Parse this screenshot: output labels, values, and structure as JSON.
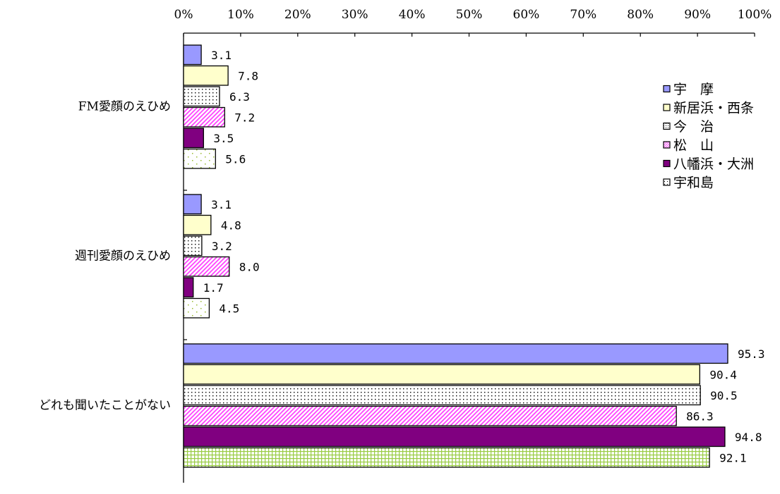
{
  "chart_data": {
    "type": "bar",
    "orientation": "horizontal",
    "categories": [
      "FM愛顔のえひめ",
      "週刊愛顔のえひめ",
      "どれも聞いたことがない"
    ],
    "x_ticks": [
      "0%",
      "10%",
      "20%",
      "30%",
      "40%",
      "50%",
      "60%",
      "70%",
      "80%",
      "90%",
      "100%"
    ],
    "xlim": [
      0,
      100
    ],
    "axis_position": "top",
    "grid": false,
    "legend_position": "right",
    "series": [
      {
        "name": "宇　摩",
        "values": [
          3.1,
          3.1,
          95.3
        ],
        "labels": [
          "3.1",
          "3.1",
          "95.3"
        ],
        "color": "#9999ff",
        "pattern": "solid"
      },
      {
        "name": "新居浜・西条",
        "values": [
          7.8,
          4.8,
          90.4
        ],
        "labels": [
          "7.8",
          "4.8",
          "90.4"
        ],
        "color": "#ffffcc",
        "pattern": "solid"
      },
      {
        "name": "今　治",
        "values": [
          6.3,
          3.2,
          90.5
        ],
        "labels": [
          "6.3",
          "3.2",
          "90.5"
        ],
        "color": "#ffffff",
        "pattern": "dots"
      },
      {
        "name": "松　山",
        "values": [
          7.2,
          8.0,
          86.3
        ],
        "labels": [
          "7.2",
          "8.0",
          "86.3"
        ],
        "color": "#ff66ff",
        "pattern": "diagonal"
      },
      {
        "name": "八幡浜・大洲",
        "values": [
          3.5,
          1.7,
          94.8
        ],
        "labels": [
          "3.5",
          "1.7",
          "94.8"
        ],
        "color": "#800080",
        "pattern": "solid"
      },
      {
        "name": "宇和島",
        "values": [
          5.6,
          4.5,
          92.1
        ],
        "labels": [
          "5.6",
          "4.5",
          "92.1"
        ],
        "color": "#ccee99",
        "pattern": "sparse-dots"
      }
    ]
  }
}
